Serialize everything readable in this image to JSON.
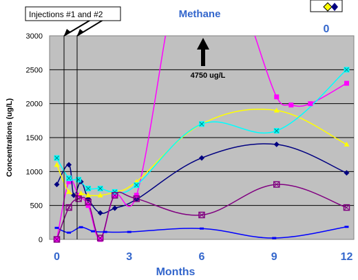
{
  "chart_data": {
    "type": "line",
    "title": "Methane",
    "xlabel": "Months",
    "ylabel": "Concentrations (ug/L)",
    "xlim": [
      -0.3,
      12.3
    ],
    "ylim": [
      0,
      3000
    ],
    "x_ticks": [
      "0",
      "3",
      "6",
      "9",
      "12"
    ],
    "y_ticks": [
      "0",
      "500",
      "1000",
      "1500",
      "2000",
      "2500",
      "3000"
    ],
    "grid": true,
    "plot_background": "#c0c0c0",
    "annotations": {
      "injections": "Injections #1 and #2",
      "peak_label": "4750 ug/L",
      "corner_label": "0"
    },
    "series": [
      {
        "color": "#000080",
        "marker": "diamond",
        "x": [
          0,
          0.5,
          0.7,
          1.0,
          1.3,
          1.8,
          2.4,
          3.3,
          6.0,
          9.1,
          12.0
        ],
        "y": [
          810,
          1100,
          650,
          850,
          600,
          390,
          460,
          590,
          1200,
          1400,
          980
        ]
      },
      {
        "color": "#0000ff",
        "marker": "dash",
        "x": [
          0,
          0.5,
          1.0,
          1.5,
          2.0,
          3.0,
          6.0,
          9.0,
          12.0
        ],
        "y": [
          170,
          100,
          180,
          120,
          110,
          110,
          160,
          20,
          185
        ]
      },
      {
        "color": "#ff00ff",
        "marker": "square",
        "x": [
          0,
          0.5,
          0.9,
          1.3,
          1.8,
          2.4,
          3.3,
          4.5
        ],
        "y": [
          0,
          850,
          650,
          500,
          0,
          650,
          650,
          3000
        ]
      },
      {
        "color": "#ff00ff",
        "marker": "square",
        "x": [
          8.2,
          9.1,
          9.7,
          10.5,
          12.0
        ],
        "y": [
          3000,
          2100,
          1980,
          2000,
          2300
        ]
      },
      {
        "color": "#ffff00",
        "marker": "triangle",
        "x": [
          0,
          0.5,
          1.0,
          1.3,
          1.8,
          2.4,
          3.3,
          6.0,
          9.1,
          12.0
        ],
        "y": [
          1100,
          700,
          680,
          650,
          650,
          700,
          850,
          1700,
          1900,
          1400
        ]
      },
      {
        "color": "#00ffff",
        "marker": "xsquare",
        "x": [
          0,
          0.5,
          0.9,
          1.3,
          1.8,
          2.4,
          3.3,
          6.0,
          9.1,
          12.0
        ],
        "y": [
          1200,
          900,
          880,
          750,
          750,
          700,
          800,
          1700,
          1600,
          2500
        ]
      },
      {
        "color": "#800080",
        "marker": "boxx",
        "x": [
          0,
          0.5,
          0.9,
          1.3,
          1.8,
          2.4,
          3.3,
          6.0,
          9.1,
          12.0
        ],
        "y": [
          0,
          470,
          600,
          550,
          20,
          650,
          600,
          360,
          810,
          470
        ]
      }
    ]
  }
}
